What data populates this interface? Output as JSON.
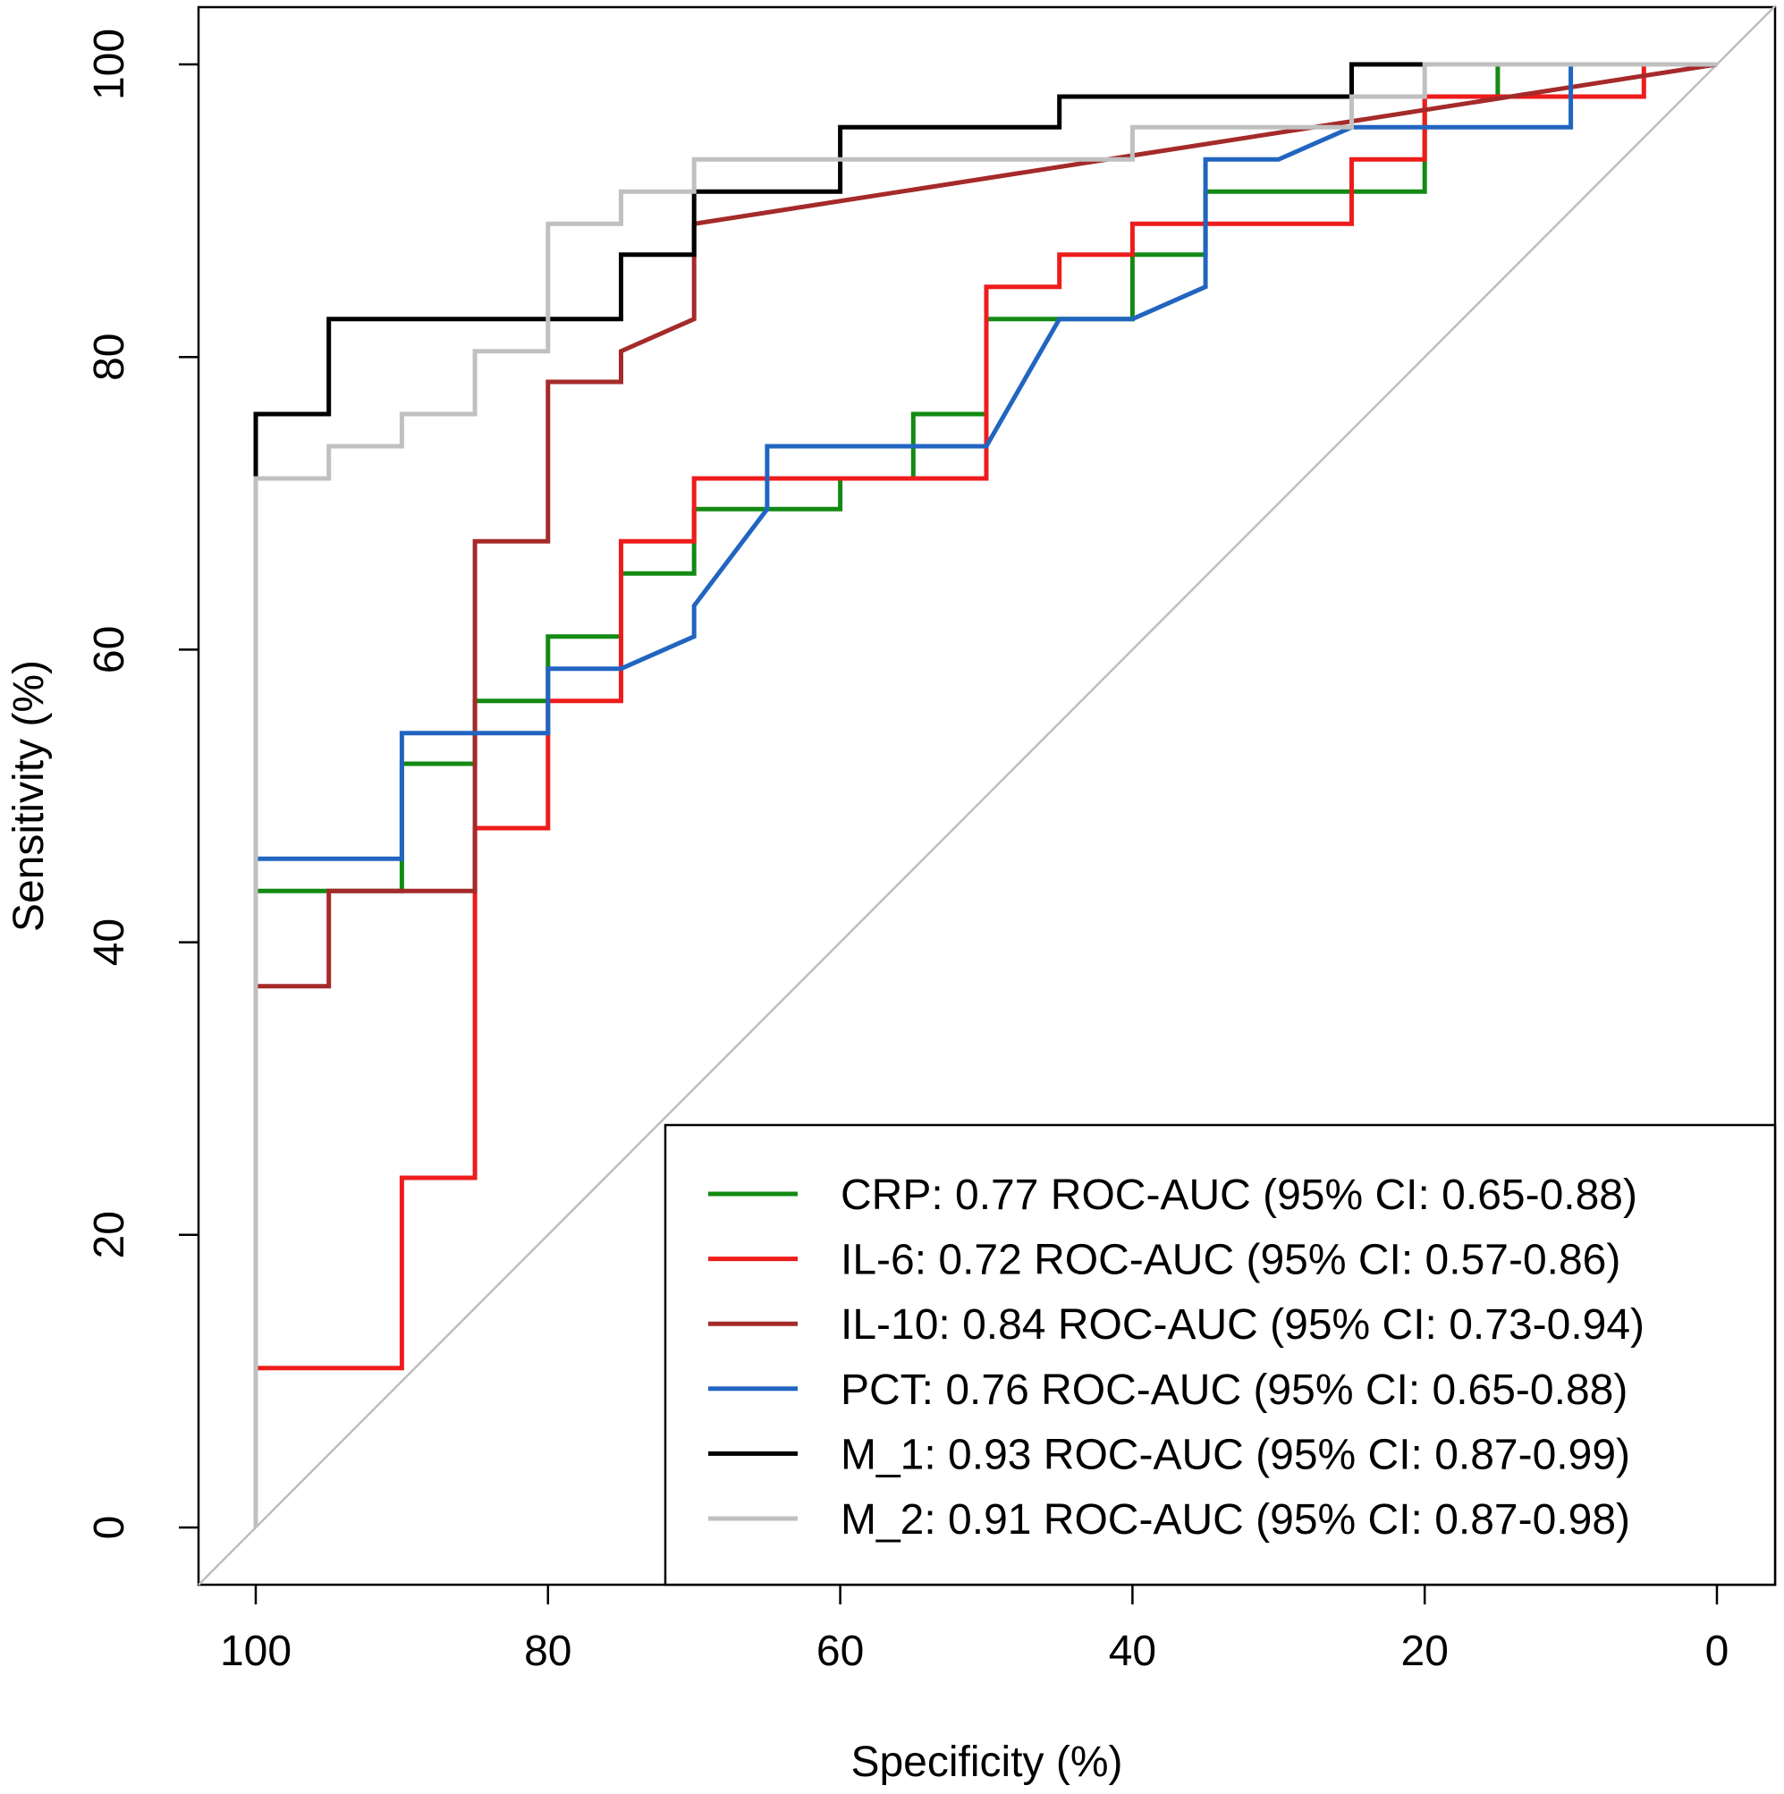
{
  "chart_data": {
    "type": "line",
    "title": "",
    "xlabel": "Specificity (%)",
    "ylabel": "Sensitivity (%)",
    "xlim": [
      100,
      0
    ],
    "ylim": [
      0,
      100
    ],
    "xticks": [
      "100",
      "80",
      "60",
      "40",
      "20",
      "0"
    ],
    "yticks": [
      "0",
      "20",
      "40",
      "60",
      "80",
      "100"
    ],
    "legend_position": "bottom-right",
    "reference_line": {
      "name": "chance",
      "color": "#bebebe",
      "points": [
        [
          100,
          0
        ],
        [
          0,
          100
        ]
      ]
    },
    "series": [
      {
        "name": "CRP",
        "label": "CRP:  0.77 ROC-AUC (95% CI: 0.65-0.88)",
        "color": "#138a13",
        "points": [
          [
            100,
            43.5
          ],
          [
            90,
            43.5
          ],
          [
            90,
            52.2
          ],
          [
            85,
            52.2
          ],
          [
            85,
            56.5
          ],
          [
            80,
            56.5
          ],
          [
            80,
            60.9
          ],
          [
            75,
            60.9
          ],
          [
            75,
            65.2
          ],
          [
            70,
            65.2
          ],
          [
            70,
            69.6
          ],
          [
            60,
            69.6
          ],
          [
            60,
            71.7
          ],
          [
            55,
            71.7
          ],
          [
            55,
            76.1
          ],
          [
            50,
            76.1
          ],
          [
            50,
            82.6
          ],
          [
            40,
            82.6
          ],
          [
            40,
            87
          ],
          [
            35,
            87
          ],
          [
            35,
            91.3
          ],
          [
            20,
            91.3
          ],
          [
            20,
            97.8
          ],
          [
            15,
            97.8
          ],
          [
            15,
            100
          ],
          [
            0,
            100
          ]
        ]
      },
      {
        "name": "IL-6",
        "label": "IL-6:   0.72 ROC-AUC (95% CI: 0.57-0.86)",
        "color": "#ee1c1c",
        "points": [
          [
            100,
            10.9
          ],
          [
            90,
            10.9
          ],
          [
            90,
            23.9
          ],
          [
            85,
            23.9
          ],
          [
            85,
            47.8
          ],
          [
            80,
            47.8
          ],
          [
            80,
            56.5
          ],
          [
            75,
            56.5
          ],
          [
            75,
            67.4
          ],
          [
            70,
            67.4
          ],
          [
            70,
            71.7
          ],
          [
            50,
            71.7
          ],
          [
            50,
            84.8
          ],
          [
            45,
            84.8
          ],
          [
            45,
            87
          ],
          [
            40,
            87
          ],
          [
            40,
            89.1
          ],
          [
            25,
            89.1
          ],
          [
            25,
            93.5
          ],
          [
            20,
            93.5
          ],
          [
            20,
            97.8
          ],
          [
            5,
            97.8
          ],
          [
            5,
            100
          ],
          [
            0,
            100
          ]
        ]
      },
      {
        "name": "IL-10",
        "label": "IL-10: 0.84 ROC-AUC (95% CI: 0.73-0.94)",
        "color": "#a52a2a",
        "points": [
          [
            100,
            37
          ],
          [
            95,
            37
          ],
          [
            95,
            43.5
          ],
          [
            85,
            43.5
          ],
          [
            85,
            67.4
          ],
          [
            80,
            67.4
          ],
          [
            80,
            78.3
          ],
          [
            75,
            78.3
          ],
          [
            75,
            80.4
          ],
          [
            70,
            82.6
          ],
          [
            70,
            89.1
          ],
          [
            0,
            100
          ]
        ]
      },
      {
        "name": "PCT",
        "label": "PCT:  0.76 ROC-AUC (95% CI: 0.65-0.88)",
        "color": "#2165c0",
        "points": [
          [
            100,
            45.7
          ],
          [
            90,
            45.7
          ],
          [
            90,
            54.3
          ],
          [
            80,
            54.3
          ],
          [
            80,
            58.7
          ],
          [
            75,
            58.7
          ],
          [
            70,
            60.9
          ],
          [
            70,
            63
          ],
          [
            65,
            69.6
          ],
          [
            65,
            73.9
          ],
          [
            50,
            73.9
          ],
          [
            45,
            82.6
          ],
          [
            40,
            82.6
          ],
          [
            35,
            84.8
          ],
          [
            35,
            93.5
          ],
          [
            30,
            93.5
          ],
          [
            25,
            95.7
          ],
          [
            10,
            95.7
          ],
          [
            10,
            100
          ],
          [
            0,
            100
          ]
        ]
      },
      {
        "name": "M_1",
        "label": "M_1:  0.93 ROC-AUC (95% CI: 0.87-0.99)",
        "color": "#000000",
        "points": [
          [
            100,
            71.7
          ],
          [
            100,
            76.1
          ],
          [
            95,
            76.1
          ],
          [
            95,
            82.6
          ],
          [
            75,
            82.6
          ],
          [
            75,
            87
          ],
          [
            70,
            87
          ],
          [
            70,
            91.3
          ],
          [
            60,
            91.3
          ],
          [
            60,
            95.7
          ],
          [
            45,
            95.7
          ],
          [
            45,
            97.8
          ],
          [
            25,
            97.8
          ],
          [
            25,
            100
          ],
          [
            0,
            100
          ]
        ]
      },
      {
        "name": "M_2",
        "label": "M_2:  0.91 ROC-AUC (95% CI: 0.87-0.98)",
        "color": "#c0c0c0",
        "points": [
          [
            100,
            0
          ],
          [
            100,
            71.7
          ],
          [
            95,
            71.7
          ],
          [
            95,
            73.9
          ],
          [
            90,
            73.9
          ],
          [
            90,
            76.1
          ],
          [
            85,
            76.1
          ],
          [
            85,
            80.4
          ],
          [
            80,
            80.4
          ],
          [
            80,
            89.1
          ],
          [
            75,
            89.1
          ],
          [
            75,
            91.3
          ],
          [
            70,
            91.3
          ],
          [
            70,
            93.5
          ],
          [
            40,
            93.5
          ],
          [
            40,
            95.7
          ],
          [
            25,
            95.7
          ],
          [
            25,
            97.8
          ],
          [
            20,
            97.8
          ],
          [
            20,
            100
          ],
          [
            0,
            100
          ]
        ]
      }
    ]
  }
}
